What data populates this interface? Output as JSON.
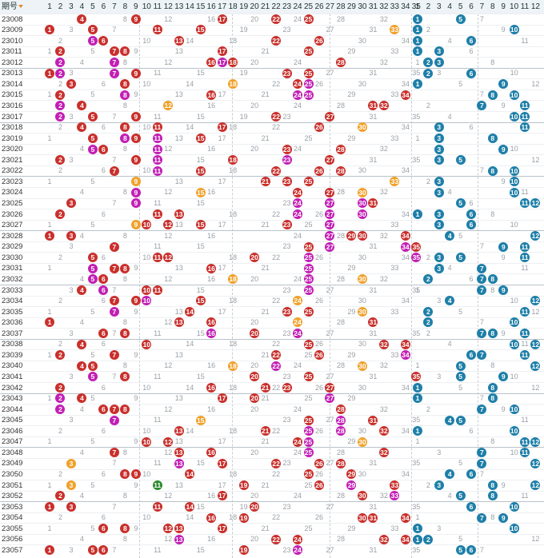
{
  "header": {
    "period_label": "期号",
    "front_numbers": [
      "1",
      "2",
      "3",
      "4",
      "5",
      "6",
      "7",
      "8",
      "9",
      "10",
      "11",
      "12",
      "13",
      "14",
      "15",
      "16",
      "17",
      "18",
      "19",
      "20",
      "21",
      "22",
      "23",
      "24",
      "25",
      "26",
      "27",
      "28",
      "29",
      "30",
      "31",
      "32",
      "33",
      "34",
      "35"
    ],
    "back_numbers": [
      "1",
      "2",
      "3",
      "4",
      "5",
      "6",
      "7",
      "8",
      "9",
      "10",
      "11",
      "12"
    ]
  },
  "draws": [
    {
      "p": "23008",
      "f": [
        4,
        9,
        17,
        22,
        25
      ],
      "b": [
        1,
        5
      ]
    },
    {
      "p": "23009",
      "f": [
        1,
        5,
        11,
        15,
        33
      ],
      "b": [
        1,
        10
      ]
    },
    {
      "p": "23010",
      "f": [
        5,
        6,
        13,
        22,
        26
      ],
      "b": [
        1,
        6
      ]
    },
    {
      "p": "23011",
      "f": [
        2,
        7,
        8,
        17,
        25
      ],
      "b": [
        1,
        3
      ]
    },
    {
      "p": "23012",
      "f": [
        2,
        7,
        16,
        17,
        18,
        28
      ],
      "b": [
        2,
        3
      ]
    },
    {
      "p": "23013",
      "f": [
        1,
        2,
        7,
        9,
        23,
        25
      ],
      "b": [
        2,
        6
      ]
    },
    {
      "p": "23014",
      "f": [
        3,
        8,
        18,
        24,
        25
      ],
      "b": [
        1,
        9
      ]
    },
    {
      "p": "23015",
      "f": [
        2,
        8,
        16,
        24,
        25,
        34
      ],
      "b": [
        8,
        10
      ]
    },
    {
      "p": "23016",
      "f": [
        2,
        4,
        12,
        31,
        32
      ],
      "b": [
        7,
        11
      ]
    },
    {
      "p": "23017",
      "f": [
        2,
        5,
        9,
        22,
        27
      ],
      "b": [
        10,
        11
      ]
    },
    {
      "p": "23018",
      "f": [
        4,
        8,
        11,
        17,
        26,
        30
      ],
      "b": [
        3,
        11
      ]
    },
    {
      "p": "23019",
      "f": [
        5,
        8,
        9,
        11,
        15
      ],
      "b": [
        3,
        8
      ]
    },
    {
      "p": "23020",
      "f": [
        5,
        6,
        11,
        23,
        28
      ],
      "b": [
        3,
        9
      ]
    },
    {
      "p": "23021",
      "f": [
        2,
        9,
        11,
        18,
        23,
        27
      ],
      "b": [
        3,
        5
      ]
    },
    {
      "p": "23022",
      "f": [
        7,
        11,
        15,
        22,
        26,
        28
      ],
      "b": [
        8,
        10
      ]
    },
    {
      "p": "23023",
      "f": [
        9,
        21,
        23,
        25,
        33
      ],
      "b": [
        3,
        10
      ]
    },
    {
      "p": "23024",
      "f": [
        9,
        15,
        24,
        27,
        30
      ],
      "b": [
        3,
        10
      ]
    },
    {
      "p": "23025",
      "f": [
        3,
        9,
        24,
        27,
        30,
        31
      ],
      "b": [
        5,
        11,
        12
      ]
    },
    {
      "p": "23026",
      "f": [
        2,
        11,
        13,
        24,
        27,
        30
      ],
      "b": [
        1,
        3,
        6
      ]
    },
    {
      "p": "23027",
      "f": [
        9,
        10,
        12,
        15,
        23,
        27
      ],
      "b": [
        3,
        6
      ]
    },
    {
      "p": "23028",
      "f": [
        1,
        3,
        27,
        29,
        30,
        34
      ],
      "b": [
        4,
        12
      ]
    },
    {
      "p": "23029",
      "f": [
        7,
        25,
        27,
        34,
        35
      ],
      "b": [
        9,
        11
      ]
    },
    {
      "p": "23030",
      "f": [
        5,
        11,
        12,
        20,
        25,
        35
      ],
      "b": [
        3,
        5,
        11
      ]
    },
    {
      "p": "23031",
      "f": [
        5,
        7,
        8,
        16,
        25
      ],
      "b": [
        3,
        7
      ]
    },
    {
      "p": "23032",
      "f": [
        5,
        6,
        18,
        25,
        30
      ],
      "b": [
        2,
        7,
        8
      ]
    },
    {
      "p": "23033",
      "f": [
        4,
        6,
        10,
        11,
        25
      ],
      "b": [
        7,
        9
      ]
    },
    {
      "p": "23034",
      "f": [
        7,
        9,
        10,
        15,
        24
      ],
      "b": [
        4,
        12
      ]
    },
    {
      "p": "23035",
      "f": [
        7,
        14,
        23,
        25,
        30
      ],
      "b": [
        2,
        11
      ]
    },
    {
      "p": "23036",
      "f": [
        1,
        13,
        16,
        24,
        31
      ],
      "b": [
        2,
        10
      ]
    },
    {
      "p": "23037",
      "f": [
        6,
        8,
        16,
        20,
        24
      ],
      "b": [
        7,
        8,
        11
      ]
    },
    {
      "p": "23038",
      "f": [
        4,
        10,
        25,
        32,
        34
      ],
      "b": [
        10,
        12
      ]
    },
    {
      "p": "23039",
      "f": [
        2,
        7,
        22,
        26,
        34
      ],
      "b": [
        6,
        7,
        11
      ]
    },
    {
      "p": "23040",
      "f": [
        4,
        5,
        18,
        22,
        30
      ],
      "b": [
        5,
        12
      ]
    },
    {
      "p": "23041",
      "f": [
        5,
        8,
        20,
        25,
        35
      ],
      "b": [
        5,
        9
      ]
    },
    {
      "p": "23042",
      "f": [
        2,
        16,
        21,
        23,
        27
      ],
      "b": [
        1,
        8
      ]
    },
    {
      "p": "23043",
      "f": [
        2,
        4,
        17,
        20,
        27
      ],
      "b": [
        1,
        8
      ]
    },
    {
      "p": "23044",
      "f": [
        2,
        6,
        7,
        8,
        28
      ],
      "b": [
        7,
        10
      ]
    },
    {
      "p": "23045",
      "f": [
        7,
        15,
        25,
        28,
        31
      ],
      "b": [
        4,
        5
      ]
    },
    {
      "p": "23046",
      "f": [
        13,
        21,
        25,
        28,
        32
      ],
      "b": [
        1,
        10
      ]
    },
    {
      "p": "23047",
      "f": [
        10,
        12,
        24,
        25,
        30
      ],
      "b": [
        11,
        12
      ]
    },
    {
      "p": "23048",
      "f": [
        7,
        13,
        16,
        25,
        32
      ],
      "b": [
        7,
        11
      ]
    },
    {
      "p": "23049",
      "f": [
        3,
        13,
        17,
        22,
        26,
        28
      ],
      "b": [
        7,
        12
      ]
    },
    {
      "p": "23050",
      "f": [
        8,
        9,
        14,
        25,
        29
      ],
      "b": [
        4,
        6
      ]
    },
    {
      "p": "23051",
      "f": [
        3,
        11,
        19,
        26,
        29,
        33
      ],
      "b": [
        3,
        8,
        12
      ]
    },
    {
      "p": "23052",
      "f": [
        2,
        17,
        30,
        33
      ],
      "b": [
        5,
        8
      ]
    },
    {
      "p": "23053",
      "f": [
        1,
        3,
        11,
        14,
        20
      ],
      "b": [
        6,
        10
      ]
    },
    {
      "p": "23054",
      "f": [
        16,
        19,
        30,
        31,
        34
      ],
      "b": [
        7,
        9
      ]
    },
    {
      "p": "23055",
      "f": [
        6,
        8,
        12,
        13,
        17
      ],
      "b": [
        1,
        10
      ]
    },
    {
      "p": "23056",
      "f": [
        13,
        22,
        24,
        32,
        34
      ],
      "b": [
        1,
        2
      ]
    },
    {
      "p": "23057",
      "f": [
        1,
        5,
        6,
        19,
        24
      ],
      "b": [
        5,
        6
      ]
    }
  ]
}
